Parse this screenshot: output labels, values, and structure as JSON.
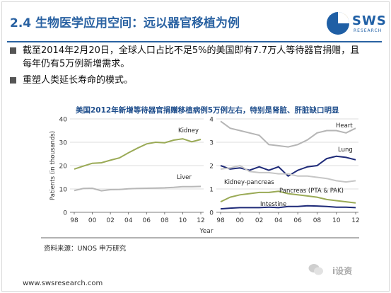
{
  "slide": {
    "title": "2.4 生物医学应用空间：远以器官移植为例",
    "logo": {
      "name": "SWS",
      "sub": "RESEARCH"
    },
    "bullets": [
      "截至2014年2月20日，全球人口占比不足5%的美国即有7.7万人等待器官捐赠，且每年仍有5万例新增需求。",
      "重塑人类延长寿命的模式。"
    ],
    "chart_title": "美国2012年新增等待器官捐赠移植病例5万例左右，特别是肾脏、肝脏缺口明显",
    "source": "资料来源：UNOS 申万研究",
    "url": "www.swsresearch.com",
    "watermark": "i设资"
  },
  "chart_data": [
    {
      "type": "line",
      "ylabel": "Patients (in thousands)",
      "ylim": [
        0,
        40
      ],
      "yticks": [
        0,
        10,
        20,
        30,
        40
      ],
      "x": [
        1998,
        1999,
        2000,
        2001,
        2002,
        2003,
        2004,
        2005,
        2006,
        2007,
        2008,
        2009,
        2010,
        2011,
        2012
      ],
      "xticklabels": [
        "98",
        "00",
        "02",
        "04",
        "06",
        "08",
        "10",
        "12"
      ],
      "series": [
        {
          "name": "Kidney",
          "color": "#9aaa56",
          "values": [
            18.5,
            19.8,
            21.0,
            21.2,
            22.3,
            23.3,
            25.5,
            27.5,
            29.3,
            30.0,
            29.8,
            30.9,
            31.5,
            30.2,
            31.2
          ]
        },
        {
          "name": "Liver",
          "color": "#b8b8b8",
          "values": [
            9.3,
            10.2,
            10.3,
            9.2,
            9.7,
            9.8,
            10.1,
            10.2,
            10.3,
            10.4,
            10.5,
            10.7,
            11.0,
            11.0,
            11.1
          ]
        }
      ]
    },
    {
      "type": "line",
      "xlabel": "Year",
      "ylim": [
        0,
        4
      ],
      "yticks": [
        0,
        1,
        2,
        3,
        4
      ],
      "x": [
        1998,
        1999,
        2000,
        2001,
        2002,
        2003,
        2004,
        2005,
        2006,
        2007,
        2008,
        2009,
        2010,
        2011,
        2012
      ],
      "xticklabels": [
        "98",
        "00",
        "02",
        "04",
        "06",
        "08",
        "10",
        "12"
      ],
      "series": [
        {
          "name": "Heart",
          "color": "#b5b5b5",
          "values": [
            3.9,
            3.6,
            3.5,
            3.4,
            3.3,
            2.9,
            2.85,
            2.8,
            2.9,
            3.1,
            3.4,
            3.5,
            3.5,
            3.4,
            3.6
          ]
        },
        {
          "name": "Lung",
          "color": "#1e2a78",
          "values": [
            2.0,
            1.85,
            1.9,
            1.8,
            1.95,
            1.8,
            1.95,
            1.55,
            1.8,
            1.95,
            2.0,
            2.3,
            2.4,
            2.35,
            2.25
          ]
        },
        {
          "name": "Kidney-pancreas",
          "color": "#c6c6c6",
          "values": [
            1.85,
            1.9,
            2.0,
            1.75,
            1.7,
            1.7,
            1.65,
            1.65,
            1.55,
            1.55,
            1.5,
            1.45,
            1.35,
            1.3,
            1.35
          ]
        },
        {
          "name": "Pancreas (PTA & PAK)",
          "color": "#9aaa56",
          "values": [
            0.45,
            0.65,
            0.75,
            0.8,
            0.85,
            0.85,
            0.9,
            0.8,
            0.75,
            0.7,
            0.65,
            0.55,
            0.5,
            0.45,
            0.4
          ]
        },
        {
          "name": "Intestine",
          "color": "#1e2a78",
          "values": [
            0.15,
            0.18,
            0.2,
            0.2,
            0.2,
            0.22,
            0.2,
            0.25,
            0.25,
            0.28,
            0.27,
            0.25,
            0.22,
            0.22,
            0.2
          ]
        }
      ]
    }
  ]
}
